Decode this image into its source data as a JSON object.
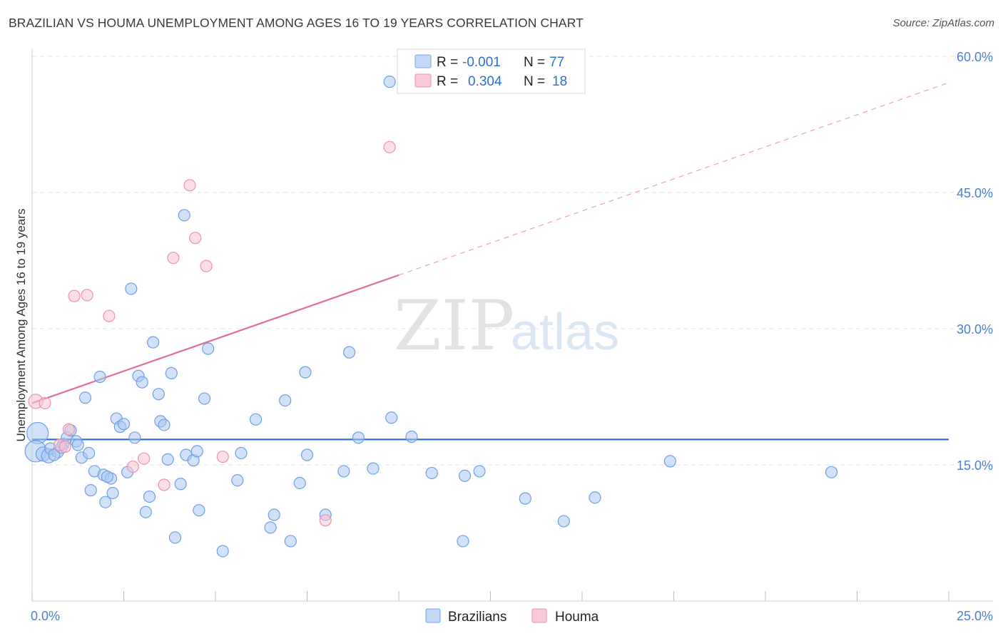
{
  "title": "BRAZILIAN VS HOUMA UNEMPLOYMENT AMONG AGES 16 TO 19 YEARS CORRELATION CHART",
  "source": "Source: ZipAtlas.com",
  "watermark": {
    "zip": "ZIP",
    "atlas": "atlas"
  },
  "chart_data": {
    "type": "scatter",
    "xlabel": "",
    "ylabel": "Unemployment Among Ages 16 to 19 years",
    "xlim": [
      0,
      25
    ],
    "ylim": [
      0,
      60
    ],
    "x_tick_labels": [
      "0.0%",
      "25.0%"
    ],
    "y_ticks": [
      15,
      30,
      45,
      60
    ],
    "y_tick_labels": [
      "15.0%",
      "30.0%",
      "45.0%",
      "60.0%"
    ],
    "grid": true,
    "legend_placement": "top-center",
    "legend": [
      {
        "name": "Brazilians",
        "r_label": "R =",
        "r": "-0.001",
        "n_label": "N =",
        "n": "77"
      },
      {
        "name": "Houma",
        "r_label": "R =",
        "r": "0.304",
        "n_label": "N =",
        "n": "18"
      }
    ],
    "series": [
      {
        "name": "Brazilians",
        "color": "#6fa0e6",
        "fill": "#aac8f2",
        "trend": {
          "x": [
            0,
            25
          ],
          "y": [
            17.8,
            17.8
          ]
        },
        "points": [
          {
            "x": 0.15,
            "y": 18.5,
            "size": "xl"
          },
          {
            "x": 0.1,
            "y": 16.5,
            "size": "xl"
          },
          {
            "x": 0.3,
            "y": 16.2,
            "size": "m"
          },
          {
            "x": 0.45,
            "y": 16.0,
            "size": "m"
          },
          {
            "x": 0.5,
            "y": 16.8,
            "size": "s"
          },
          {
            "x": 0.7,
            "y": 16.4,
            "size": "s"
          },
          {
            "x": 0.85,
            "y": 17.3,
            "size": "s"
          },
          {
            "x": 0.95,
            "y": 18.0,
            "size": "s"
          },
          {
            "x": 1.05,
            "y": 18.8,
            "size": "s"
          },
          {
            "x": 1.2,
            "y": 17.6,
            "size": "s"
          },
          {
            "x": 1.25,
            "y": 17.2,
            "size": "s"
          },
          {
            "x": 1.35,
            "y": 15.8,
            "size": "s"
          },
          {
            "x": 1.45,
            "y": 22.4,
            "size": "s"
          },
          {
            "x": 1.55,
            "y": 16.3,
            "size": "s"
          },
          {
            "x": 1.6,
            "y": 12.2,
            "size": "s"
          },
          {
            "x": 1.7,
            "y": 14.3,
            "size": "s"
          },
          {
            "x": 1.85,
            "y": 24.7,
            "size": "s"
          },
          {
            "x": 1.95,
            "y": 13.9,
            "size": "s"
          },
          {
            "x": 2.0,
            "y": 10.9,
            "size": "s"
          },
          {
            "x": 2.15,
            "y": 13.5,
            "size": "s"
          },
          {
            "x": 2.2,
            "y": 11.9,
            "size": "s"
          },
          {
            "x": 2.3,
            "y": 20.1,
            "size": "s"
          },
          {
            "x": 2.4,
            "y": 19.2,
            "size": "s"
          },
          {
            "x": 2.5,
            "y": 19.5,
            "size": "s"
          },
          {
            "x": 2.6,
            "y": 14.2,
            "size": "s"
          },
          {
            "x": 2.7,
            "y": 34.4,
            "size": "s"
          },
          {
            "x": 2.8,
            "y": 18.0,
            "size": "s"
          },
          {
            "x": 2.9,
            "y": 24.8,
            "size": "s"
          },
          {
            "x": 3.0,
            "y": 24.1,
            "size": "s"
          },
          {
            "x": 3.1,
            "y": 9.8,
            "size": "s"
          },
          {
            "x": 3.2,
            "y": 11.5,
            "size": "s"
          },
          {
            "x": 3.3,
            "y": 28.5,
            "size": "s"
          },
          {
            "x": 3.45,
            "y": 22.8,
            "size": "s"
          },
          {
            "x": 3.5,
            "y": 19.8,
            "size": "s"
          },
          {
            "x": 3.6,
            "y": 19.4,
            "size": "s"
          },
          {
            "x": 3.7,
            "y": 15.6,
            "size": "s"
          },
          {
            "x": 3.8,
            "y": 25.1,
            "size": "s"
          },
          {
            "x": 3.9,
            "y": 7.0,
            "size": "s"
          },
          {
            "x": 4.05,
            "y": 12.9,
            "size": "s"
          },
          {
            "x": 4.15,
            "y": 42.5,
            "size": "s"
          },
          {
            "x": 4.2,
            "y": 16.1,
            "size": "s"
          },
          {
            "x": 4.4,
            "y": 15.5,
            "size": "s"
          },
          {
            "x": 4.5,
            "y": 16.5,
            "size": "s"
          },
          {
            "x": 4.55,
            "y": 10.0,
            "size": "s"
          },
          {
            "x": 4.7,
            "y": 22.3,
            "size": "s"
          },
          {
            "x": 4.8,
            "y": 27.8,
            "size": "s"
          },
          {
            "x": 5.2,
            "y": 5.5,
            "size": "s"
          },
          {
            "x": 5.6,
            "y": 13.3,
            "size": "s"
          },
          {
            "x": 5.7,
            "y": 16.3,
            "size": "s"
          },
          {
            "x": 6.1,
            "y": 20.0,
            "size": "s"
          },
          {
            "x": 6.5,
            "y": 8.1,
            "size": "s"
          },
          {
            "x": 6.6,
            "y": 9.5,
            "size": "s"
          },
          {
            "x": 6.9,
            "y": 22.1,
            "size": "s"
          },
          {
            "x": 7.05,
            "y": 6.6,
            "size": "s"
          },
          {
            "x": 7.3,
            "y": 13.0,
            "size": "s"
          },
          {
            "x": 7.45,
            "y": 25.2,
            "size": "s"
          },
          {
            "x": 7.5,
            "y": 16.1,
            "size": "s"
          },
          {
            "x": 8.0,
            "y": 9.5,
            "size": "s"
          },
          {
            "x": 8.5,
            "y": 14.3,
            "size": "s"
          },
          {
            "x": 8.65,
            "y": 27.4,
            "size": "s"
          },
          {
            "x": 8.9,
            "y": 18.0,
            "size": "s"
          },
          {
            "x": 9.3,
            "y": 14.6,
            "size": "s"
          },
          {
            "x": 9.75,
            "y": 57.2,
            "size": "s"
          },
          {
            "x": 9.8,
            "y": 20.2,
            "size": "s"
          },
          {
            "x": 10.35,
            "y": 18.1,
            "size": "s"
          },
          {
            "x": 10.9,
            "y": 14.1,
            "size": "s"
          },
          {
            "x": 11.75,
            "y": 6.6,
            "size": "s"
          },
          {
            "x": 11.8,
            "y": 13.8,
            "size": "s"
          },
          {
            "x": 12.2,
            "y": 14.3,
            "size": "s"
          },
          {
            "x": 13.45,
            "y": 11.3,
            "size": "s"
          },
          {
            "x": 14.5,
            "y": 8.8,
            "size": "s"
          },
          {
            "x": 15.35,
            "y": 11.4,
            "size": "s"
          },
          {
            "x": 17.4,
            "y": 15.4,
            "size": "s"
          },
          {
            "x": 21.8,
            "y": 14.2,
            "size": "s"
          },
          {
            "x": 0.6,
            "y": 16.1,
            "size": "s"
          },
          {
            "x": 0.8,
            "y": 16.9,
            "size": "s"
          },
          {
            "x": 2.05,
            "y": 13.7,
            "size": "s"
          }
        ]
      },
      {
        "name": "Houma",
        "color": "#f090ac",
        "fill": "#f8c4d3",
        "trend": {
          "x": [
            0,
            10.0
          ],
          "y": [
            21.8,
            35.9
          ],
          "dashed_to": [
            25,
            57.1
          ]
        },
        "points": [
          {
            "x": 0.1,
            "y": 22.0,
            "size": "m"
          },
          {
            "x": 0.35,
            "y": 21.8,
            "size": "s"
          },
          {
            "x": 0.75,
            "y": 17.2,
            "size": "s"
          },
          {
            "x": 0.9,
            "y": 17.0,
            "size": "s"
          },
          {
            "x": 1.0,
            "y": 18.9,
            "size": "s"
          },
          {
            "x": 1.15,
            "y": 33.6,
            "size": "s"
          },
          {
            "x": 1.5,
            "y": 33.7,
            "size": "s"
          },
          {
            "x": 2.1,
            "y": 31.4,
            "size": "s"
          },
          {
            "x": 2.75,
            "y": 14.8,
            "size": "s"
          },
          {
            "x": 3.05,
            "y": 15.7,
            "size": "s"
          },
          {
            "x": 3.6,
            "y": 12.8,
            "size": "s"
          },
          {
            "x": 3.85,
            "y": 37.8,
            "size": "s"
          },
          {
            "x": 4.3,
            "y": 45.8,
            "size": "s"
          },
          {
            "x": 4.45,
            "y": 40.0,
            "size": "s"
          },
          {
            "x": 4.75,
            "y": 36.9,
            "size": "s"
          },
          {
            "x": 5.2,
            "y": 15.9,
            "size": "s"
          },
          {
            "x": 8.0,
            "y": 8.9,
            "size": "s"
          },
          {
            "x": 9.75,
            "y": 50.0,
            "size": "s"
          }
        ]
      }
    ]
  }
}
